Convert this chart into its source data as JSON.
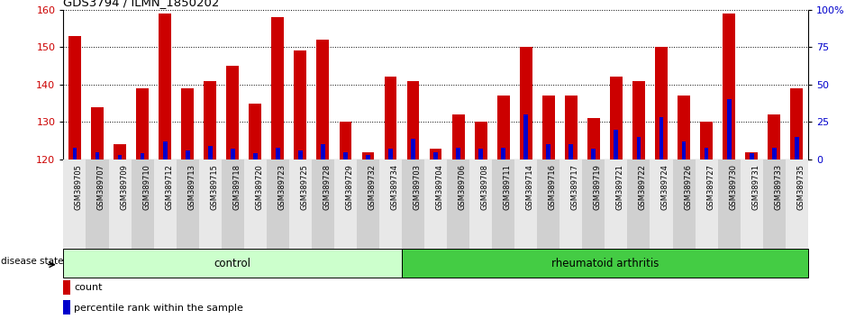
{
  "title": "GDS3794 / ILMN_1850202",
  "samples": [
    "GSM389705",
    "GSM389707",
    "GSM389709",
    "GSM389710",
    "GSM389712",
    "GSM389713",
    "GSM389715",
    "GSM389718",
    "GSM389720",
    "GSM389723",
    "GSM389725",
    "GSM389728",
    "GSM389729",
    "GSM389732",
    "GSM389734",
    "GSM389703",
    "GSM389704",
    "GSM389706",
    "GSM389708",
    "GSM389711",
    "GSM389714",
    "GSM389716",
    "GSM389717",
    "GSM389719",
    "GSM389721",
    "GSM389722",
    "GSM389724",
    "GSM389726",
    "GSM389727",
    "GSM389730",
    "GSM389731",
    "GSM389733",
    "GSM389735"
  ],
  "count_values": [
    153,
    134,
    124,
    139,
    159,
    139,
    141,
    145,
    135,
    158,
    149,
    152,
    130,
    122,
    142,
    141,
    123,
    132,
    130,
    137,
    150,
    137,
    137,
    131,
    142,
    141,
    150,
    137,
    130,
    159,
    122,
    132,
    139
  ],
  "percentile_values": [
    8,
    5,
    3,
    4,
    12,
    6,
    9,
    7,
    4,
    8,
    6,
    10,
    5,
    3,
    7,
    14,
    5,
    8,
    7,
    8,
    30,
    10,
    10,
    7,
    20,
    15,
    28,
    12,
    8,
    40,
    4,
    8,
    15
  ],
  "n_control": 15,
  "y_min": 120,
  "y_max": 160,
  "y_ticks": [
    120,
    130,
    140,
    150,
    160
  ],
  "y_right_ticks": [
    0,
    25,
    50,
    75,
    100
  ],
  "bar_color": "#cc0000",
  "percentile_color": "#0000cc",
  "control_color": "#ccffcc",
  "ra_color": "#44cc44",
  "bar_width": 0.55,
  "baseline": 120,
  "tick_bg_light": "#e8e8e8",
  "tick_bg_dark": "#d0d0d0"
}
